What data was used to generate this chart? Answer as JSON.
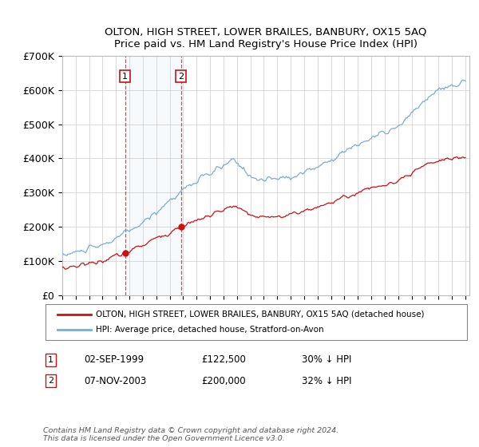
{
  "title": "OLTON, HIGH STREET, LOWER BRAILES, BANBURY, OX15 5AQ",
  "subtitle": "Price paid vs. HM Land Registry's House Price Index (HPI)",
  "ylim": [
    0,
    700000
  ],
  "yticks": [
    0,
    100000,
    200000,
    300000,
    400000,
    500000,
    600000,
    700000
  ],
  "ytick_labels": [
    "£0",
    "£100K",
    "£200K",
    "£300K",
    "£400K",
    "£500K",
    "£600K",
    "£700K"
  ],
  "hpi_color": "#7aadd4",
  "price_color": "#cc1111",
  "marker1_x": 1999.67,
  "marker1_price": 122500,
  "marker1_label": "1",
  "marker1_date": "02-SEP-1999",
  "marker1_hpi_pct": "30% ↓ HPI",
  "marker2_x": 2003.84,
  "marker2_price": 200000,
  "marker2_label": "2",
  "marker2_date": "07-NOV-2003",
  "marker2_hpi_pct": "32% ↓ HPI",
  "legend_label_red": "OLTON, HIGH STREET, LOWER BRAILES, BANBURY, OX15 5AQ (detached house)",
  "legend_label_blue": "HPI: Average price, detached house, Stratford-on-Avon",
  "footer": "Contains HM Land Registry data © Crown copyright and database right 2024.\nThis data is licensed under the Open Government Licence v3.0.",
  "background_color": "#ffffff",
  "grid_color": "#cccccc"
}
